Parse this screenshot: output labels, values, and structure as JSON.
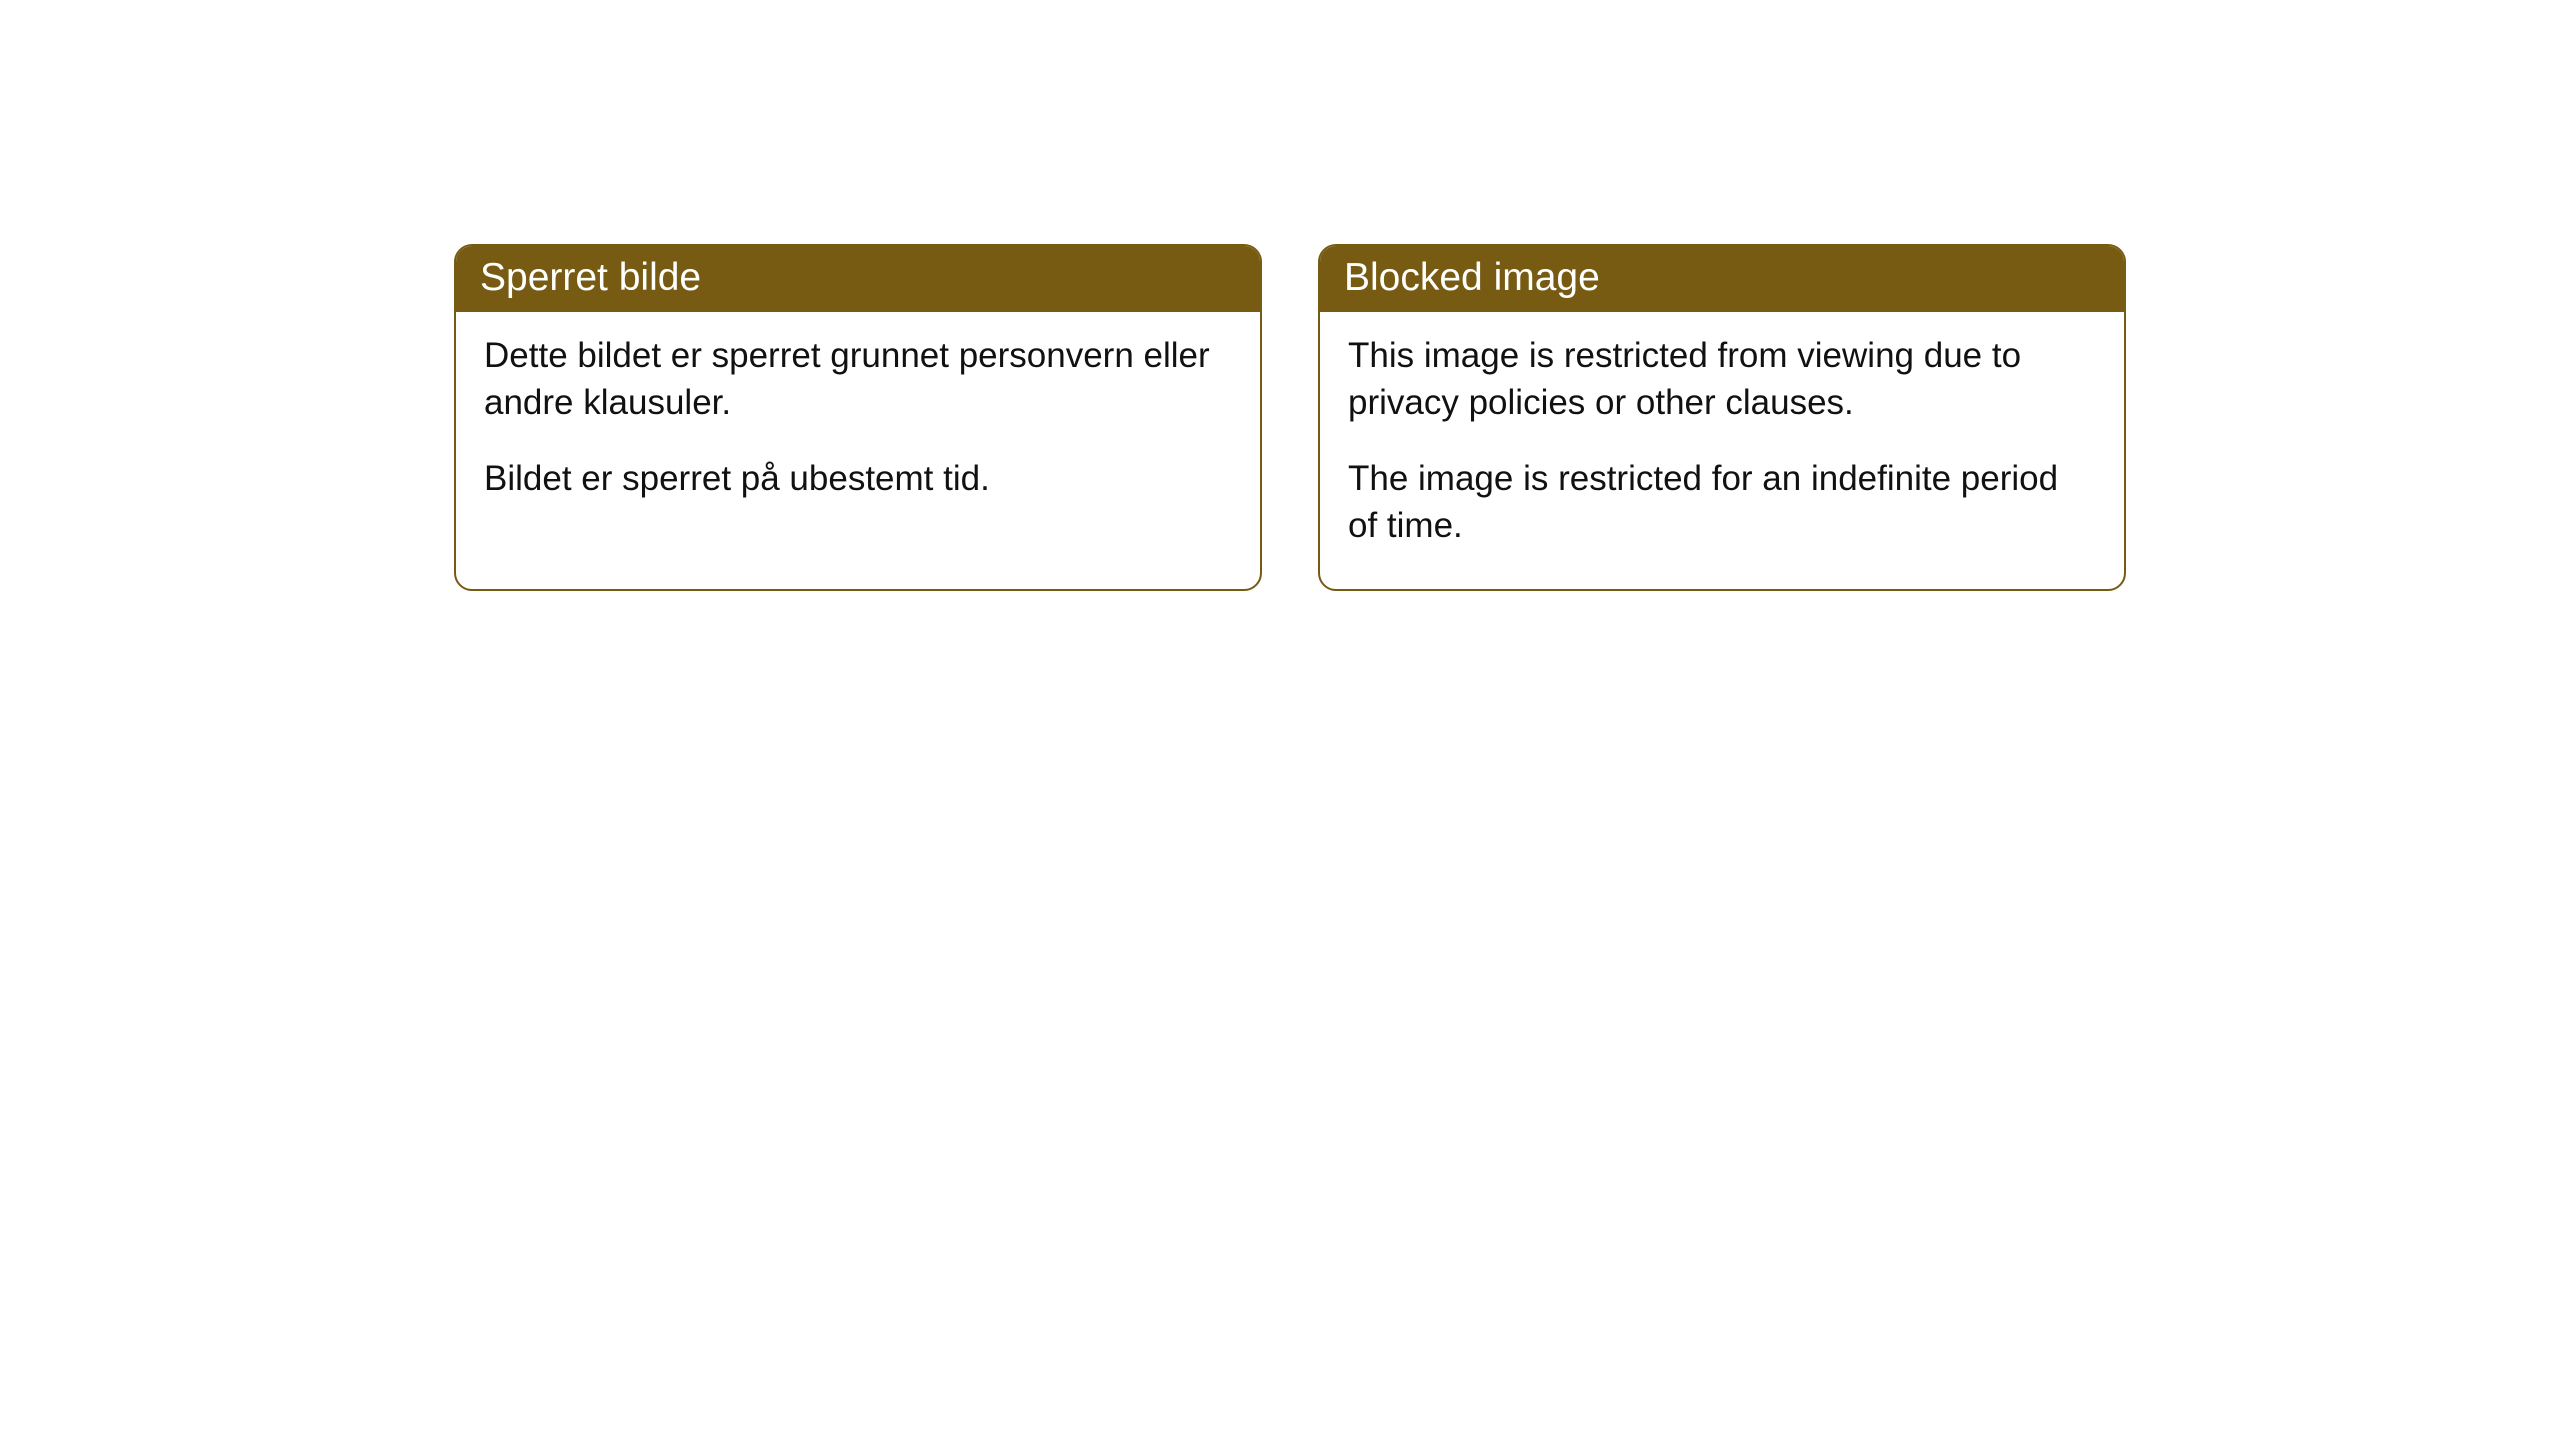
{
  "cards": [
    {
      "title": "Sperret bilde",
      "paragraph1": "Dette bildet er sperret grunnet personvern eller andre klausuler.",
      "paragraph2": "Bildet er sperret på ubestemt tid."
    },
    {
      "title": "Blocked image",
      "paragraph1": "This image is restricted from viewing due to privacy policies or other clauses.",
      "paragraph2": "The image is restricted for an indefinite period of time."
    }
  ],
  "style": {
    "header_background": "#775b13",
    "header_text_color": "#ffffff",
    "border_color": "#775b13",
    "body_background": "#ffffff",
    "body_text_color": "#111111",
    "border_radius": 18,
    "title_fontsize": 39,
    "body_fontsize": 35
  }
}
